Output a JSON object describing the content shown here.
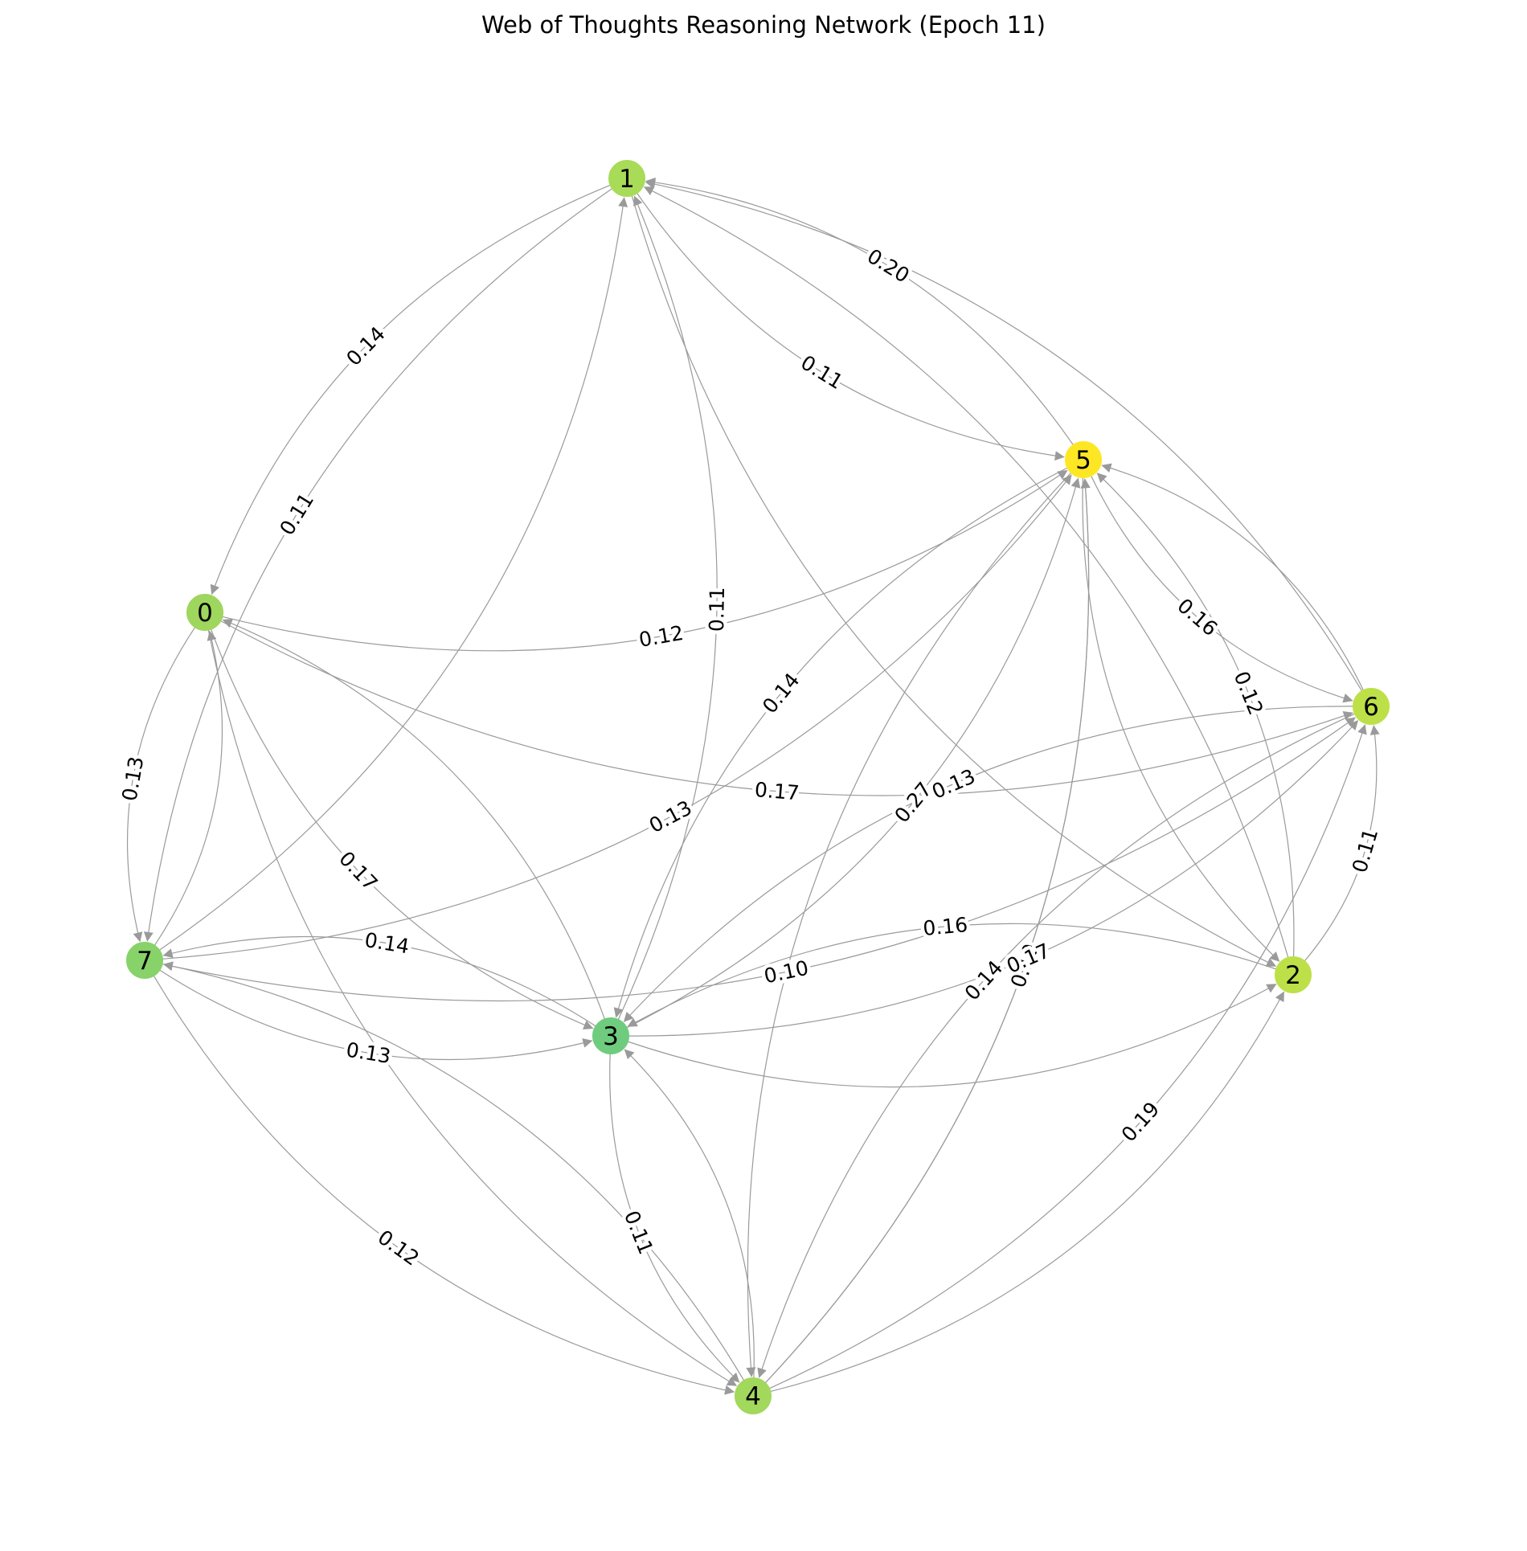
{
  "title": "Web of Thoughts Reasoning Network (Epoch 11)",
  "colors": {
    "edge": "#9a9a9a",
    "label_text": "#000000",
    "node_text": "#000000"
  },
  "nodes": [
    {
      "id": "0",
      "label": "0",
      "color": "#9ed65e"
    },
    {
      "id": "1",
      "label": "1",
      "color": "#a8db58"
    },
    {
      "id": "2",
      "label": "2",
      "color": "#bde048"
    },
    {
      "id": "3",
      "label": "3",
      "color": "#6fcc7e"
    },
    {
      "id": "4",
      "label": "4",
      "color": "#a2d85c"
    },
    {
      "id": "5",
      "label": "5",
      "color": "#fde725"
    },
    {
      "id": "6",
      "label": "6",
      "color": "#bde048"
    },
    {
      "id": "7",
      "label": "7",
      "color": "#88d26a"
    }
  ],
  "edges": [
    {
      "source": "1",
      "target": "0",
      "label": "0.14"
    },
    {
      "source": "1",
      "target": "7",
      "label": "0.11"
    },
    {
      "source": "7",
      "target": "1",
      "label": ""
    },
    {
      "source": "3",
      "target": "1",
      "label": "0.11"
    },
    {
      "source": "5",
      "target": "1",
      "label": "0.20"
    },
    {
      "source": "1",
      "target": "5",
      "label": "0.11"
    },
    {
      "source": "1",
      "target": "2",
      "label": ""
    },
    {
      "source": "2",
      "target": "1",
      "label": ""
    },
    {
      "source": "6",
      "target": "1",
      "label": ""
    },
    {
      "source": "0",
      "target": "5",
      "label": "0.12"
    },
    {
      "source": "0",
      "target": "6",
      "label": "0.17"
    },
    {
      "source": "0",
      "target": "7",
      "label": "0.13"
    },
    {
      "source": "7",
      "target": "0",
      "label": ""
    },
    {
      "source": "0",
      "target": "3",
      "label": "0.17"
    },
    {
      "source": "3",
      "target": "0",
      "label": ""
    },
    {
      "source": "0",
      "target": "4",
      "label": ""
    },
    {
      "source": "7",
      "target": "5",
      "label": "0.13"
    },
    {
      "source": "7",
      "target": "6",
      "label": "0.10"
    },
    {
      "source": "5",
      "target": "3",
      "label": "0.14"
    },
    {
      "source": "3",
      "target": "5",
      "label": "0.27"
    },
    {
      "source": "4",
      "target": "5",
      "label": ""
    },
    {
      "source": "5",
      "target": "4",
      "label": ""
    },
    {
      "source": "5",
      "target": "6",
      "label": "0.16"
    },
    {
      "source": "6",
      "target": "5",
      "label": ""
    },
    {
      "source": "2",
      "target": "5",
      "label": "0.12"
    },
    {
      "source": "5",
      "target": "2",
      "label": ""
    },
    {
      "source": "4",
      "target": "5",
      "label": "0.10"
    },
    {
      "source": "6",
      "target": "3",
      "label": "0.13"
    },
    {
      "source": "3",
      "target": "6",
      "label": "0.17"
    },
    {
      "source": "2",
      "target": "6",
      "label": "0.11"
    },
    {
      "source": "6",
      "target": "4",
      "label": "0.14"
    },
    {
      "source": "4",
      "target": "6",
      "label": "0.19"
    },
    {
      "source": "4",
      "target": "2",
      "label": ""
    },
    {
      "source": "2",
      "target": "3",
      "label": "0.16"
    },
    {
      "source": "3",
      "target": "2",
      "label": ""
    },
    {
      "source": "7",
      "target": "3",
      "label": "0.13"
    },
    {
      "source": "3",
      "target": "7",
      "label": "0.14"
    },
    {
      "source": "3",
      "target": "4",
      "label": "0.11"
    },
    {
      "source": "4",
      "target": "3",
      "label": ""
    },
    {
      "source": "7",
      "target": "4",
      "label": "0.12"
    },
    {
      "source": "4",
      "target": "7",
      "label": ""
    }
  ]
}
